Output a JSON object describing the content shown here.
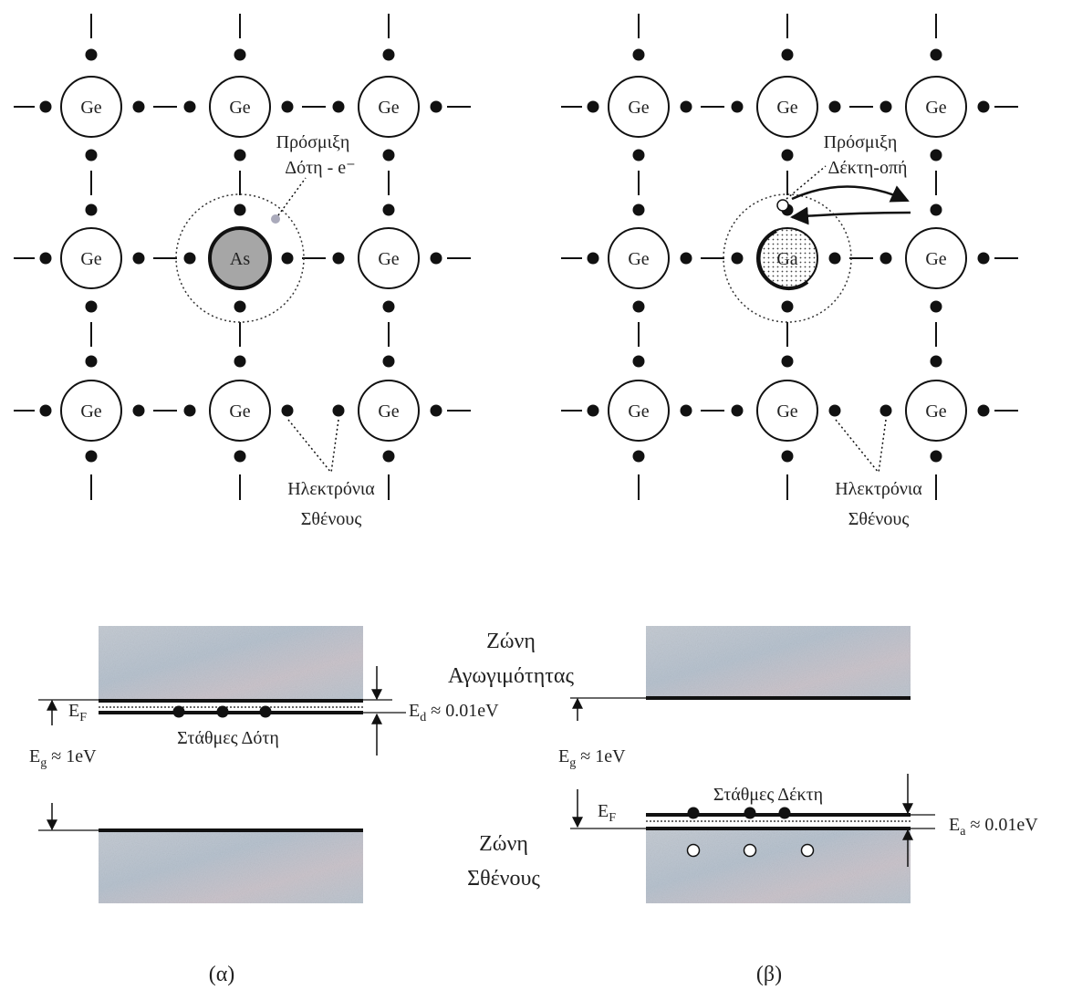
{
  "panels": [
    {
      "atoms": [
        "Ge",
        "Ge",
        "Ge",
        "Ge",
        "As",
        "Ge",
        "Ge",
        "Ge",
        "Ge"
      ],
      "impurity_label": [
        "Πρόσμιξη",
        "Δότη - e⁻"
      ],
      "electrons_label": [
        "Ηλεκτρόνια",
        "Σθένους"
      ],
      "levels_label": "Στάθμες Δότη",
      "fermi": {
        "symbol": "E",
        "subscript": "F"
      },
      "gap": {
        "symbol": "E",
        "subscript": "g",
        "value": "≈ 1eV"
      },
      "level_gap": {
        "symbol": "E",
        "subscript": "d",
        "value": "≈ 0.01eV"
      },
      "caption": "(α)"
    },
    {
      "atoms": [
        "Ge",
        "Ge",
        "Ge",
        "Ge",
        "Ga",
        "Ge",
        "Ge",
        "Ge",
        "Ge"
      ],
      "impurity_label": [
        "Πρόσμιξη",
        "Δέκτη-οπή"
      ],
      "electrons_label": [
        "Ηλεκτρόνια",
        "Σθένους"
      ],
      "levels_label": "Στάθμες Δέκτη",
      "fermi": {
        "symbol": "E",
        "subscript": "F"
      },
      "gap": {
        "symbol": "E",
        "subscript": "g",
        "value": "≈ 1eV"
      },
      "level_gap": {
        "symbol": "E",
        "subscript": "a",
        "value": "≈ 0.01eV"
      },
      "caption": "(β)"
    }
  ],
  "bands": {
    "conduction": [
      "Ζώνη",
      "Αγωγιμότητας"
    ],
    "valence": [
      "Ζώνη",
      "Σθένους"
    ]
  }
}
